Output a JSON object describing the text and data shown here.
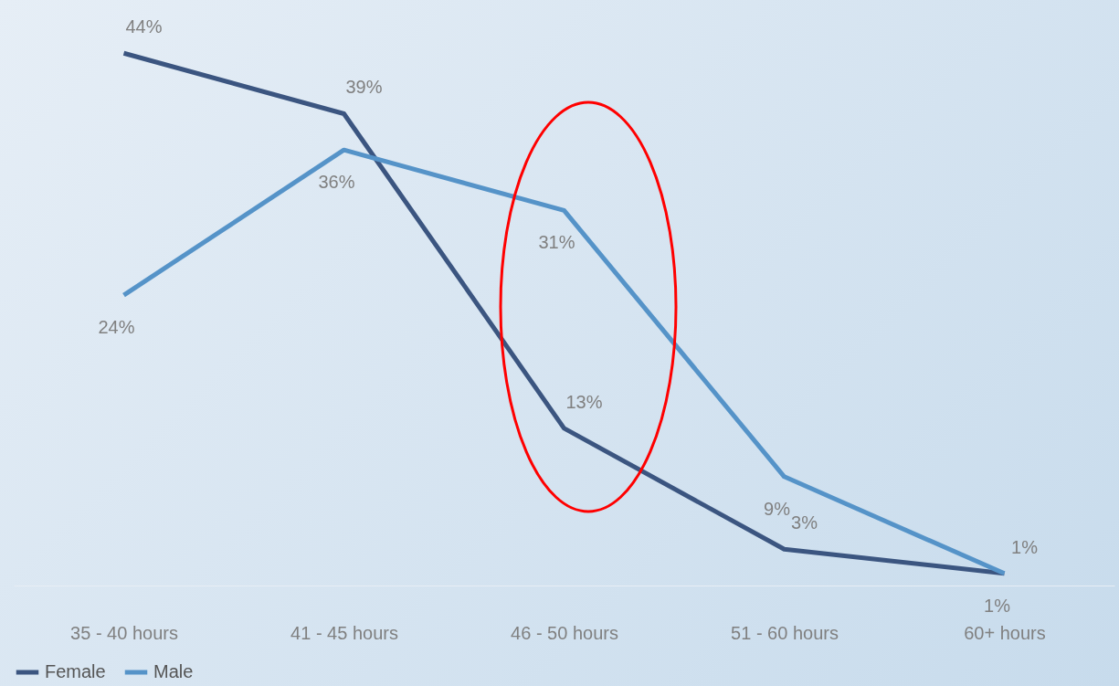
{
  "chart_data": {
    "type": "line",
    "categories": [
      "35 - 40 hours",
      "41 - 45 hours",
      "46 - 50 hours",
      "51 - 60 hours",
      "60+ hours"
    ],
    "series": [
      {
        "name": "Female",
        "color": "#3b5580",
        "values": [
          44,
          39,
          13,
          3,
          1
        ],
        "value_labels": [
          "44%",
          "39%",
          "13%",
          "3%",
          "1%"
        ]
      },
      {
        "name": "Male",
        "color": "#5593c8",
        "values": [
          24,
          36,
          31,
          9,
          1
        ],
        "value_labels": [
          "24%",
          "36%",
          "31%",
          "9%",
          "1%"
        ]
      }
    ],
    "legend": "bottom",
    "grid": false,
    "marker": "none",
    "line_style": "solid"
  }
}
